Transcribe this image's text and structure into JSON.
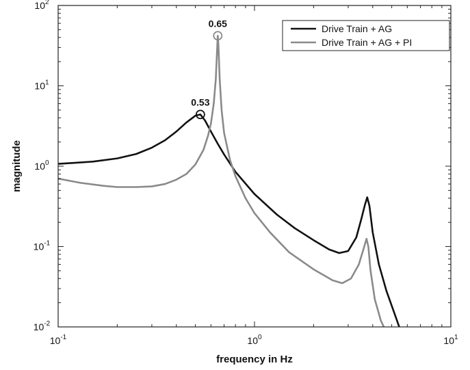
{
  "chart_data": {
    "type": "line",
    "xlabel": "frequency in Hz",
    "ylabel": "magnitude",
    "xscale": "log",
    "yscale": "log",
    "xlim": [
      0.1,
      10
    ],
    "ylim": [
      0.01,
      100
    ],
    "x_ticks": [
      {
        "value": 0.1,
        "base": "10",
        "exp": "-1"
      },
      {
        "value": 1,
        "base": "10",
        "exp": "0"
      },
      {
        "value": 10,
        "base": "10",
        "exp": "1"
      }
    ],
    "y_ticks": [
      {
        "value": 0.01,
        "base": "10",
        "exp": "-2"
      },
      {
        "value": 0.1,
        "base": "10",
        "exp": "-1"
      },
      {
        "value": 1,
        "base": "10",
        "exp": "0"
      },
      {
        "value": 10,
        "base": "10",
        "exp": "1"
      },
      {
        "value": 100,
        "base": "10",
        "exp": "2"
      }
    ],
    "grid": false,
    "legend_position": "top-right",
    "series": [
      {
        "name": "Drive Train + AG",
        "color": "#111111",
        "points": [
          [
            0.1,
            1.07
          ],
          [
            0.12,
            1.1
          ],
          [
            0.15,
            1.14
          ],
          [
            0.2,
            1.25
          ],
          [
            0.25,
            1.42
          ],
          [
            0.3,
            1.7
          ],
          [
            0.35,
            2.1
          ],
          [
            0.4,
            2.7
          ],
          [
            0.45,
            3.5
          ],
          [
            0.5,
            4.25
          ],
          [
            0.53,
            4.4
          ],
          [
            0.56,
            3.7
          ],
          [
            0.6,
            2.7
          ],
          [
            0.65,
            1.9
          ],
          [
            0.7,
            1.4
          ],
          [
            0.8,
            0.85
          ],
          [
            1.0,
            0.45
          ],
          [
            1.3,
            0.25
          ],
          [
            1.6,
            0.17
          ],
          [
            2.0,
            0.12
          ],
          [
            2.4,
            0.092
          ],
          [
            2.7,
            0.083
          ],
          [
            3.0,
            0.088
          ],
          [
            3.3,
            0.13
          ],
          [
            3.5,
            0.22
          ],
          [
            3.65,
            0.33
          ],
          [
            3.75,
            0.41
          ],
          [
            3.85,
            0.32
          ],
          [
            4.0,
            0.15
          ],
          [
            4.3,
            0.06
          ],
          [
            4.7,
            0.028
          ],
          [
            5.2,
            0.014
          ],
          [
            5.5,
            0.0095
          ]
        ]
      },
      {
        "name": "Drive Train + AG + PI",
        "color": "#8a8a8a",
        "points": [
          [
            0.1,
            0.7
          ],
          [
            0.13,
            0.62
          ],
          [
            0.17,
            0.57
          ],
          [
            0.2,
            0.55
          ],
          [
            0.25,
            0.55
          ],
          [
            0.3,
            0.56
          ],
          [
            0.35,
            0.6
          ],
          [
            0.4,
            0.68
          ],
          [
            0.45,
            0.8
          ],
          [
            0.5,
            1.05
          ],
          [
            0.55,
            1.6
          ],
          [
            0.58,
            2.4
          ],
          [
            0.6,
            3.4
          ],
          [
            0.62,
            6.0
          ],
          [
            0.635,
            12.0
          ],
          [
            0.645,
            28.0
          ],
          [
            0.65,
            42.0
          ],
          [
            0.655,
            32.0
          ],
          [
            0.665,
            12.0
          ],
          [
            0.68,
            5.0
          ],
          [
            0.7,
            2.6
          ],
          [
            0.75,
            1.2
          ],
          [
            0.8,
            0.75
          ],
          [
            0.9,
            0.4
          ],
          [
            1.0,
            0.26
          ],
          [
            1.2,
            0.15
          ],
          [
            1.5,
            0.085
          ],
          [
            2.0,
            0.052
          ],
          [
            2.5,
            0.038
          ],
          [
            2.8,
            0.035
          ],
          [
            3.1,
            0.04
          ],
          [
            3.4,
            0.06
          ],
          [
            3.6,
            0.095
          ],
          [
            3.72,
            0.125
          ],
          [
            3.8,
            0.1
          ],
          [
            3.9,
            0.05
          ],
          [
            4.1,
            0.022
          ],
          [
            4.4,
            0.012
          ],
          [
            4.6,
            0.0095
          ]
        ]
      }
    ],
    "annotations": [
      {
        "text": "0.53",
        "x": 0.53,
        "y": 4.4,
        "series": 0
      },
      {
        "text": "0.65",
        "x": 0.65,
        "y": 42.0,
        "series": 1
      }
    ]
  }
}
